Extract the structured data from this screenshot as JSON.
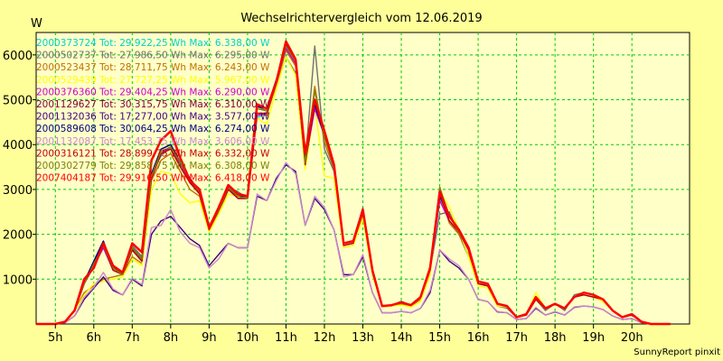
{
  "chart_data": {
    "type": "line",
    "title": "Wechselrichtervergleich vom 12.06.2019",
    "ylabel": "W",
    "footer": "SunnyReport pinxit",
    "xlabel": "",
    "xlim": [
      4.5,
      21.5
    ],
    "ylim": [
      0,
      6500
    ],
    "x_ticks": [
      "5h",
      "6h",
      "7h",
      "8h",
      "9h",
      "10h",
      "11h",
      "12h",
      "13h",
      "14h",
      "15h",
      "16h",
      "17h",
      "18h",
      "19h",
      "20h"
    ],
    "y_ticks": [
      "1000",
      "2000",
      "3000",
      "4000",
      "5000",
      "6000"
    ],
    "grid": true,
    "grid_color": "#00cc00",
    "legend_position": "top-left",
    "x": [
      4.5,
      4.75,
      5.0,
      5.25,
      5.5,
      5.75,
      6.0,
      6.25,
      6.5,
      6.75,
      7.0,
      7.25,
      7.5,
      7.75,
      8.0,
      8.25,
      8.5,
      8.75,
      9.0,
      9.25,
      9.5,
      9.75,
      10.0,
      10.25,
      10.5,
      10.75,
      11.0,
      11.25,
      11.5,
      11.75,
      12.0,
      12.25,
      12.5,
      12.75,
      13.0,
      13.25,
      13.5,
      13.75,
      14.0,
      14.25,
      14.5,
      14.75,
      15.0,
      15.25,
      15.5,
      15.75,
      16.0,
      16.25,
      16.5,
      16.75,
      17.0,
      17.25,
      17.5,
      17.75,
      18.0,
      18.25,
      18.5,
      18.75,
      19.0,
      19.25,
      19.5,
      19.75,
      20.0,
      20.25,
      20.5,
      20.75,
      21.0
    ],
    "series": [
      {
        "name": "2000373724 Tot: 29.922,25 Wh Max: 6.338,00 W",
        "color": "#00d0d0",
        "values": [
          0,
          0,
          0,
          50,
          300,
          900,
          1280,
          1700,
          1200,
          1100,
          1650,
          1400,
          3300,
          3800,
          3950,
          3550,
          3200,
          2900,
          2150,
          2550,
          3000,
          2800,
          2800,
          4600,
          4700,
          5400,
          6200,
          5850,
          3600,
          4850,
          4200,
          3500,
          1800,
          1850,
          2500,
          1200,
          400,
          420,
          480,
          420,
          600,
          1200,
          2800,
          2300,
          2050,
          1650,
          900,
          850,
          450,
          400,
          150,
          200,
          550,
          350,
          450,
          350,
          600,
          650,
          600,
          550,
          300,
          150,
          200,
          50,
          0,
          0,
          0
        ]
      },
      {
        "name": "2000502737 Tot: 27.986,50 Wh Max: 6.295,00 W",
        "color": "#707070",
        "values": [
          0,
          0,
          0,
          50,
          300,
          900,
          1400,
          1850,
          1250,
          1150,
          1750,
          1500,
          3350,
          3750,
          3950,
          3600,
          3150,
          2950,
          2050,
          2500,
          3050,
          2950,
          2800,
          4850,
          4750,
          5300,
          5950,
          5600,
          3600,
          6200,
          3900,
          3400,
          1750,
          1800,
          2600,
          1150,
          400,
          400,
          450,
          400,
          550,
          1200,
          2450,
          2500,
          2000,
          1500,
          950,
          850,
          400,
          350,
          150,
          200,
          550,
          300,
          450,
          300,
          650,
          700,
          650,
          550,
          300,
          150,
          200,
          50,
          0,
          0,
          0
        ]
      },
      {
        "name": "2000523437 Tot: 28.711,75 Wh Max: 6.243,00 W",
        "color": "#c07000",
        "values": [
          0,
          0,
          0,
          50,
          300,
          700,
          850,
          1000,
          1050,
          1100,
          1500,
          1350,
          3200,
          3650,
          3800,
          3400,
          3000,
          2850,
          2100,
          2450,
          3000,
          2850,
          2800,
          4700,
          4650,
          5350,
          6100,
          5750,
          3550,
          5300,
          4050,
          3450,
          1750,
          1800,
          2450,
          1150,
          400,
          400,
          450,
          400,
          550,
          1150,
          2900,
          2250,
          2000,
          1550,
          900,
          850,
          450,
          400,
          150,
          200,
          600,
          350,
          450,
          350,
          600,
          650,
          600,
          550,
          300,
          150,
          200,
          50,
          0,
          0,
          0
        ]
      },
      {
        "name": "2000529439 Tot: 27.727,25 Wh Max: 5.967,00 W",
        "color": "#ffff00",
        "values": [
          0,
          0,
          0,
          50,
          280,
          650,
          900,
          950,
          1000,
          1050,
          1450,
          1300,
          3000,
          3400,
          3350,
          2900,
          2700,
          2750,
          2050,
          2450,
          2900,
          2850,
          2800,
          4600,
          4450,
          5250,
          5950,
          5550,
          3450,
          4850,
          3300,
          3250,
          1700,
          1750,
          2350,
          1100,
          380,
          400,
          420,
          380,
          500,
          1100,
          2950,
          2600,
          2100,
          1500,
          850,
          800,
          400,
          380,
          150,
          200,
          700,
          350,
          450,
          350,
          600,
          650,
          600,
          500,
          300,
          150,
          200,
          50,
          0,
          0,
          0
        ]
      },
      {
        "name": "2000376360 Tot: 29.404,25 Wh Max: 6.290,00 W",
        "color": "#cc00cc",
        "values": [
          0,
          0,
          0,
          50,
          300,
          900,
          1300,
          1700,
          1200,
          1100,
          1650,
          1400,
          3300,
          3800,
          3950,
          3550,
          3200,
          2900,
          2150,
          2550,
          3000,
          2800,
          2800,
          4650,
          4700,
          5400,
          6150,
          5800,
          3600,
          4800,
          4200,
          3500,
          1800,
          1850,
          2500,
          1200,
          400,
          420,
          480,
          420,
          600,
          1200,
          2750,
          2300,
          2050,
          1650,
          900,
          850,
          450,
          400,
          150,
          200,
          550,
          350,
          450,
          350,
          600,
          650,
          600,
          550,
          300,
          150,
          200,
          50,
          0,
          0,
          0
        ]
      },
      {
        "name": "2001129627 Tot: 30.315,75 Wh Max: 6.310,00 W",
        "color": "#800040",
        "values": [
          0,
          0,
          0,
          50,
          300,
          950,
          1380,
          1800,
          1250,
          1120,
          1700,
          1450,
          3350,
          3900,
          4000,
          3600,
          3250,
          2950,
          2150,
          2600,
          3050,
          2850,
          2850,
          4900,
          4800,
          5450,
          6250,
          5900,
          3650,
          4900,
          4250,
          3550,
          1800,
          1850,
          2550,
          1200,
          400,
          420,
          500,
          420,
          600,
          1250,
          2850,
          2400,
          2100,
          1700,
          950,
          900,
          450,
          400,
          150,
          220,
          600,
          350,
          450,
          350,
          600,
          700,
          650,
          550,
          300,
          150,
          220,
          50,
          0,
          0,
          0
        ]
      },
      {
        "name": "2001132036 Tot: 17.277,00 Wh Max: 3.577,00 W",
        "color": "#400080",
        "values": [
          0,
          0,
          0,
          30,
          180,
          550,
          800,
          1050,
          750,
          650,
          1000,
          850,
          2000,
          2300,
          2400,
          2150,
          1900,
          1750,
          1300,
          1550,
          1800,
          1700,
          1700,
          2850,
          2750,
          3250,
          3550,
          3400,
          2200,
          2800,
          2550,
          2100,
          1100,
          1100,
          1500,
          700,
          250,
          250,
          280,
          250,
          350,
          700,
          1650,
          1400,
          1250,
          1000,
          550,
          500,
          270,
          250,
          100,
          120,
          350,
          200,
          270,
          200,
          370,
          400,
          380,
          320,
          180,
          100,
          120,
          30,
          0,
          0,
          0
        ]
      },
      {
        "name": "2000589608 Tot: 30.064,25 Wh Max: 6.274,00 W",
        "color": "#000080",
        "values": [
          0,
          0,
          0,
          50,
          300,
          950,
          1400,
          1850,
          1250,
          1130,
          1700,
          1450,
          3350,
          3900,
          4000,
          3600,
          3250,
          2950,
          2150,
          2600,
          3050,
          2850,
          2850,
          4850,
          4800,
          5450,
          6200,
          5900,
          3650,
          4900,
          4200,
          3550,
          1800,
          1850,
          2550,
          1200,
          400,
          420,
          500,
          420,
          600,
          1250,
          2850,
          2400,
          2100,
          1700,
          950,
          900,
          450,
          400,
          150,
          220,
          600,
          350,
          450,
          350,
          600,
          700,
          650,
          550,
          300,
          150,
          220,
          50,
          0,
          0,
          0
        ]
      },
      {
        "name": "2001132087 Tot: 17.453,75 Wh Max: 3.606,00 W",
        "color": "#cc88cc",
        "values": [
          0,
          0,
          0,
          30,
          180,
          600,
          820,
          1150,
          780,
          650,
          1020,
          880,
          2150,
          2200,
          2550,
          2050,
          1800,
          1700,
          1250,
          1450,
          1800,
          1700,
          1700,
          2900,
          2750,
          3200,
          3600,
          3350,
          2200,
          2850,
          2600,
          2100,
          1050,
          1100,
          1550,
          700,
          250,
          250,
          280,
          250,
          350,
          750,
          1650,
          1450,
          1300,
          1000,
          550,
          500,
          280,
          250,
          100,
          120,
          370,
          200,
          280,
          200,
          380,
          400,
          380,
          320,
          180,
          100,
          120,
          30,
          0,
          0,
          0
        ]
      },
      {
        "name": "2000316121 Tot: 28.899,75 Wh Max: 6.332,00 W",
        "color": "#c00000",
        "values": [
          0,
          0,
          0,
          50,
          300,
          900,
          1300,
          1750,
          1200,
          1100,
          1650,
          1400,
          3250,
          3800,
          3900,
          3500,
          3150,
          2900,
          2100,
          2550,
          3000,
          2800,
          2800,
          4700,
          4700,
          5400,
          6300,
          5850,
          3550,
          5000,
          4200,
          3500,
          1750,
          1800,
          2500,
          1150,
          400,
          420,
          480,
          420,
          600,
          1200,
          2900,
          2300,
          2050,
          1650,
          900,
          850,
          450,
          400,
          150,
          200,
          550,
          350,
          450,
          350,
          600,
          650,
          600,
          550,
          300,
          150,
          200,
          50,
          0,
          0,
          0
        ]
      },
      {
        "name": "2000302779 Tot: 29.858,75 Wh Max: 6.308,00 W",
        "color": "#808000",
        "values": [
          0,
          0,
          0,
          50,
          300,
          900,
          1350,
          1750,
          1250,
          1100,
          1700,
          1450,
          3300,
          3850,
          3950,
          3600,
          3200,
          2950,
          2150,
          2550,
          3050,
          2850,
          2800,
          4800,
          4750,
          5400,
          6200,
          5850,
          3600,
          5200,
          4150,
          3550,
          1800,
          1850,
          2550,
          1200,
          400,
          420,
          480,
          420,
          600,
          1250,
          3050,
          2400,
          2050,
          1700,
          950,
          900,
          450,
          400,
          150,
          220,
          600,
          350,
          450,
          350,
          600,
          700,
          650,
          550,
          300,
          150,
          220,
          50,
          0,
          0,
          0
        ]
      },
      {
        "name": "2007404187 Tot: 29.916,50 Wh Max: 6.418,00 W",
        "color": "#ff0000",
        "values": [
          0,
          0,
          0,
          50,
          300,
          1000,
          1250,
          1800,
          1300,
          1150,
          1800,
          1600,
          3650,
          4100,
          4300,
          3700,
          3200,
          3000,
          2150,
          2600,
          3100,
          2900,
          2850,
          4900,
          4800,
          5400,
          6300,
          5900,
          3800,
          5000,
          4300,
          3550,
          1800,
          1850,
          2550,
          1200,
          400,
          420,
          480,
          420,
          600,
          1250,
          2950,
          2400,
          2100,
          1700,
          950,
          900,
          450,
          400,
          150,
          220,
          600,
          350,
          450,
          350,
          600,
          700,
          650,
          550,
          300,
          150,
          220,
          50,
          0,
          0,
          0
        ]
      }
    ]
  }
}
